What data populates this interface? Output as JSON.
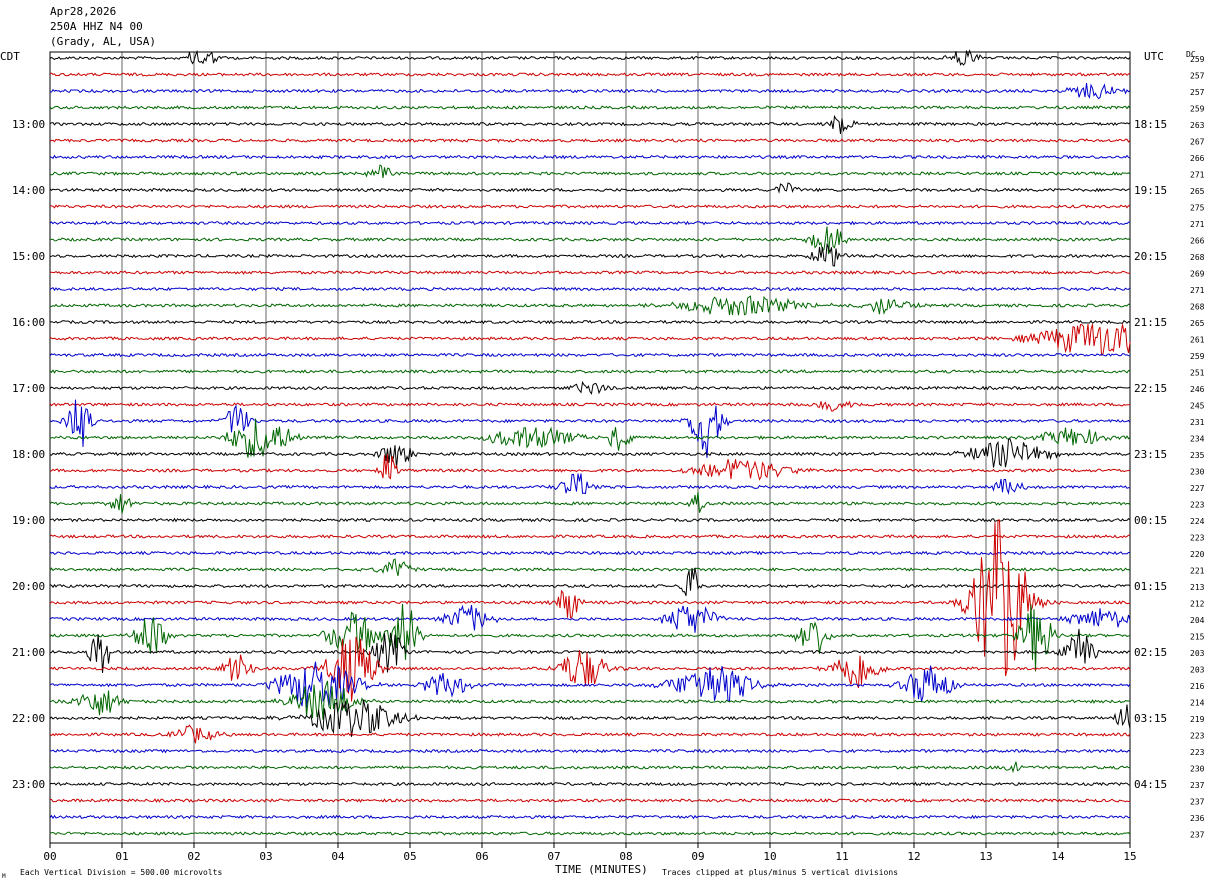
{
  "header": {
    "date": "Apr28,2026",
    "station": "250A HHZ N4 00",
    "location": "(Grady, AL, USA)"
  },
  "left_timezone": "CDT",
  "right_timezone": "UTC",
  "dc_label": "DC",
  "footer": {
    "scale_note": "Each Vertical Division =  500.00 microvolts",
    "clip_note": "Traces clipped at plus/minus 5 vertical divisions",
    "corner_mark": "M"
  },
  "colors": {
    "trace_cycle": [
      "#000000",
      "#cc0000",
      "#0000cc",
      "#006600"
    ],
    "grid": "#000000"
  },
  "chart_data": {
    "type": "line",
    "subtype": "helicorder",
    "xlabel": "TIME (MINUTES)",
    "xlim": [
      0,
      15
    ],
    "x_ticks": [
      "00",
      "01",
      "02",
      "03",
      "04",
      "05",
      "06",
      "07",
      "08",
      "09",
      "10",
      "11",
      "12",
      "13",
      "14",
      "15"
    ],
    "left_hour_labels": [
      "13:00",
      "14:00",
      "15:00",
      "16:00",
      "17:00",
      "18:00",
      "19:00",
      "20:00",
      "21:00",
      "22:00",
      "23:00"
    ],
    "right_hour_labels": [
      "18:15",
      "19:15",
      "20:15",
      "21:15",
      "22:15",
      "23:15",
      "00:15",
      "01:15",
      "02:15",
      "03:15",
      "04:15"
    ],
    "dc_offsets": [
      259,
      257,
      257,
      259,
      263,
      267,
      266,
      271,
      265,
      275,
      271,
      266,
      268,
      269,
      271,
      268,
      265,
      261,
      259,
      251,
      246,
      245,
      231,
      234,
      235,
      230,
      227,
      223,
      224,
      223,
      220,
      221,
      213,
      212,
      204,
      215,
      203,
      203,
      216,
      214,
      219,
      223,
      223,
      230,
      237,
      237,
      236,
      237
    ],
    "trace_count": 48,
    "minutes_per_trace": 15,
    "grid": true,
    "clip_divisions": 5,
    "events": [
      {
        "trace": 0,
        "minute": 2.1,
        "amp": 1.5,
        "width": 0.2
      },
      {
        "trace": 0,
        "minute": 12.7,
        "amp": 1.2,
        "width": 0.2
      },
      {
        "trace": 2,
        "minute": 14.5,
        "amp": 1.2,
        "width": 0.3
      },
      {
        "trace": 4,
        "minute": 11.0,
        "amp": 1.8,
        "width": 0.15
      },
      {
        "trace": 7,
        "minute": 4.6,
        "amp": 1.2,
        "width": 0.15
      },
      {
        "trace": 8,
        "minute": 10.2,
        "amp": 1.0,
        "width": 0.15
      },
      {
        "trace": 11,
        "minute": 10.8,
        "amp": 2.2,
        "width": 0.2
      },
      {
        "trace": 12,
        "minute": 10.8,
        "amp": 1.8,
        "width": 0.2
      },
      {
        "trace": 15,
        "minute": 9.6,
        "amp": 1.4,
        "width": 0.8
      },
      {
        "trace": 15,
        "minute": 11.6,
        "amp": 1.2,
        "width": 0.3
      },
      {
        "trace": 17,
        "minute": 14.6,
        "amp": 2.5,
        "width": 0.8
      },
      {
        "trace": 20,
        "minute": 7.5,
        "amp": 1.0,
        "width": 0.2
      },
      {
        "trace": 21,
        "minute": 10.9,
        "amp": 1.0,
        "width": 0.2
      },
      {
        "trace": 22,
        "minute": 0.4,
        "amp": 4.0,
        "width": 0.15
      },
      {
        "trace": 22,
        "minute": 2.6,
        "amp": 2.5,
        "width": 0.15
      },
      {
        "trace": 22,
        "minute": 9.1,
        "amp": 5.0,
        "width": 0.2
      },
      {
        "trace": 23,
        "minute": 2.9,
        "amp": 3.0,
        "width": 0.4
      },
      {
        "trace": 23,
        "minute": 6.7,
        "amp": 1.5,
        "width": 0.6
      },
      {
        "trace": 23,
        "minute": 7.9,
        "amp": 2.0,
        "width": 0.15
      },
      {
        "trace": 23,
        "minute": 14.2,
        "amp": 1.4,
        "width": 0.4
      },
      {
        "trace": 24,
        "minute": 4.8,
        "amp": 2.0,
        "width": 0.2
      },
      {
        "trace": 24,
        "minute": 13.3,
        "amp": 2.0,
        "width": 0.5
      },
      {
        "trace": 25,
        "minute": 4.7,
        "amp": 3.0,
        "width": 0.1
      },
      {
        "trace": 25,
        "minute": 9.6,
        "amp": 1.6,
        "width": 0.6
      },
      {
        "trace": 26,
        "minute": 7.3,
        "amp": 2.0,
        "width": 0.2
      },
      {
        "trace": 26,
        "minute": 13.3,
        "amp": 1.2,
        "width": 0.2
      },
      {
        "trace": 27,
        "minute": 1.0,
        "amp": 1.5,
        "width": 0.15
      },
      {
        "trace": 27,
        "minute": 9.0,
        "amp": 1.5,
        "width": 0.1
      },
      {
        "trace": 31,
        "minute": 4.8,
        "amp": 1.5,
        "width": 0.2
      },
      {
        "trace": 32,
        "minute": 8.9,
        "amp": 4.0,
        "width": 0.1
      },
      {
        "trace": 33,
        "minute": 13.2,
        "amp": 12.0,
        "width": 0.35
      },
      {
        "trace": 33,
        "minute": 7.2,
        "amp": 3.0,
        "width": 0.15
      },
      {
        "trace": 34,
        "minute": 5.8,
        "amp": 2.0,
        "width": 0.3
      },
      {
        "trace": 34,
        "minute": 8.9,
        "amp": 2.5,
        "width": 0.3
      },
      {
        "trace": 34,
        "minute": 14.6,
        "amp": 1.5,
        "width": 0.4
      },
      {
        "trace": 35,
        "minute": 4.9,
        "amp": 5.0,
        "width": 0.2
      },
      {
        "trace": 35,
        "minute": 13.7,
        "amp": 5.0,
        "width": 0.2
      },
      {
        "trace": 35,
        "minute": 1.4,
        "amp": 3.0,
        "width": 0.2
      },
      {
        "trace": 35,
        "minute": 4.2,
        "amp": 3.5,
        "width": 0.3
      },
      {
        "trace": 35,
        "minute": 10.6,
        "amp": 3.0,
        "width": 0.2
      },
      {
        "trace": 36,
        "minute": 0.7,
        "amp": 3.0,
        "width": 0.15
      },
      {
        "trace": 36,
        "minute": 4.7,
        "amp": 3.0,
        "width": 0.2
      },
      {
        "trace": 36,
        "minute": 14.3,
        "amp": 3.0,
        "width": 0.2
      },
      {
        "trace": 37,
        "minute": 4.2,
        "amp": 5.0,
        "width": 0.3
      },
      {
        "trace": 37,
        "minute": 7.4,
        "amp": 3.0,
        "width": 0.3
      },
      {
        "trace": 37,
        "minute": 11.2,
        "amp": 3.0,
        "width": 0.3
      },
      {
        "trace": 37,
        "minute": 2.6,
        "amp": 2.0,
        "width": 0.2
      },
      {
        "trace": 38,
        "minute": 3.7,
        "amp": 3.5,
        "width": 0.5
      },
      {
        "trace": 38,
        "minute": 9.2,
        "amp": 3.0,
        "width": 0.5
      },
      {
        "trace": 38,
        "minute": 12.2,
        "amp": 3.0,
        "width": 0.3
      },
      {
        "trace": 38,
        "minute": 5.5,
        "amp": 1.8,
        "width": 0.3
      },
      {
        "trace": 39,
        "minute": 3.8,
        "amp": 3.0,
        "width": 0.4
      },
      {
        "trace": 39,
        "minute": 0.7,
        "amp": 2.0,
        "width": 0.3
      },
      {
        "trace": 40,
        "minute": 4.2,
        "amp": 2.5,
        "width": 0.6
      },
      {
        "trace": 40,
        "minute": 15.0,
        "amp": 2.0,
        "width": 0.2
      },
      {
        "trace": 41,
        "minute": 2.0,
        "amp": 1.2,
        "width": 0.3
      },
      {
        "trace": 43,
        "minute": 13.4,
        "amp": 1.2,
        "width": 0.1
      }
    ]
  }
}
